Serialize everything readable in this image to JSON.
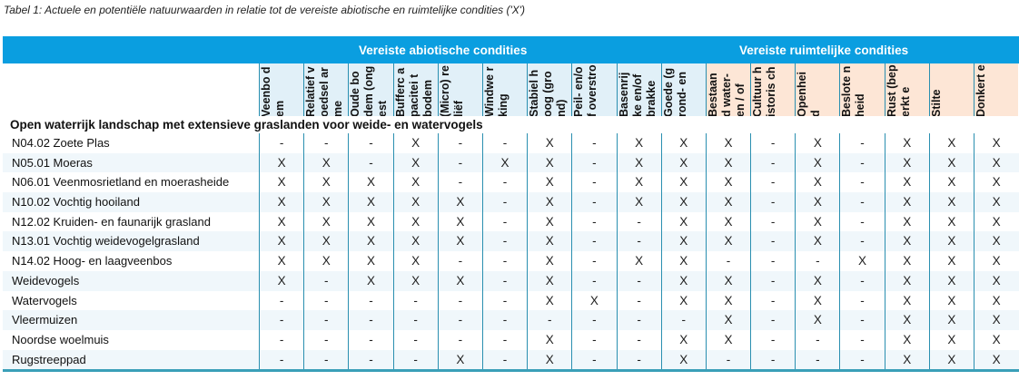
{
  "caption": "Tabel 1: Actuele en potentiële natuurwaarden in relatie tot de vereiste abiotische en ruimtelijke condities ('X')",
  "groups": {
    "abiotic": "Vereiste abiotische condities",
    "spatial": "Vereiste ruimtelijke condities"
  },
  "colors": {
    "banner": "#0a9ee0",
    "abiotic_header": "#e1f0f8",
    "spatial_header": "#fde6d6",
    "grid_line": "#2a8fb0"
  },
  "columns": [
    {
      "label": "Veenbo dem",
      "group": "abiotic"
    },
    {
      "label": "Relatief voedsel arme",
      "group": "abiotic"
    },
    {
      "label": "Oude bodem (ongest",
      "group": "abiotic"
    },
    {
      "label": "Bufferc apacitei t bodem",
      "group": "abiotic"
    },
    {
      "label": "(Micro) reliëf",
      "group": "abiotic"
    },
    {
      "label": "Windwe rking",
      "group": "abiotic"
    },
    {
      "label": "Stabiel hoog (grond)",
      "group": "abiotic"
    },
    {
      "label": "Peil- en/of overstro",
      "group": "abiotic"
    },
    {
      "label": "Basenrij ke en/of brakke",
      "group": "abiotic"
    },
    {
      "label": "Goede (grond- en",
      "group": "abiotic"
    },
    {
      "label": "Bestaan d water- en / of",
      "group": "spatial"
    },
    {
      "label": "Cultuur historis ch",
      "group": "spatial"
    },
    {
      "label": "Openhei d",
      "group": "spatial"
    },
    {
      "label": "Beslote nheid",
      "group": "spatial"
    },
    {
      "label": "Rust (beperkt e",
      "group": "spatial"
    },
    {
      "label": "Stilte",
      "group": "spatial"
    },
    {
      "label": "Donkert e",
      "group": "spatial"
    }
  ],
  "section_title": "Open waterrijk landschap met extensieve graslanden voor weide- en watervogels",
  "rows": [
    {
      "name": "N04.02 Zoete Plas",
      "values": [
        "-",
        "-",
        "-",
        "X",
        "-",
        "-",
        "X",
        "-",
        "X",
        "X",
        "X",
        "-",
        "X",
        "-",
        "X",
        "X",
        "X"
      ]
    },
    {
      "name": "N05.01 Moeras",
      "values": [
        "X",
        "X",
        "-",
        "X",
        "-",
        "X",
        "X",
        "-",
        "X",
        "X",
        "X",
        "-",
        "X",
        "-",
        "X",
        "X",
        "X"
      ]
    },
    {
      "name": "N06.01 Veenmosrietland en moerasheide",
      "values": [
        "X",
        "X",
        "X",
        "X",
        "-",
        "-",
        "X",
        "-",
        "X",
        "X",
        "X",
        "-",
        "X",
        "-",
        "X",
        "X",
        "X"
      ]
    },
    {
      "name": "N10.02 Vochtig hooiland",
      "values": [
        "X",
        "X",
        "X",
        "X",
        "X",
        "-",
        "X",
        "-",
        "X",
        "X",
        "X",
        "-",
        "X",
        "-",
        "X",
        "X",
        "X"
      ]
    },
    {
      "name": "N12.02 Kruiden- en faunarijk grasland",
      "values": [
        "X",
        "X",
        "X",
        "X",
        "X",
        "-",
        "X",
        "-",
        "-",
        "X",
        "X",
        "-",
        "X",
        "-",
        "X",
        "X",
        "X"
      ]
    },
    {
      "name": "N13.01 Vochtig weidevogelgrasland",
      "values": [
        "X",
        "X",
        "X",
        "X",
        "X",
        "-",
        "X",
        "-",
        "-",
        "X",
        "X",
        "-",
        "X",
        "-",
        "X",
        "X",
        "X"
      ]
    },
    {
      "name": "N14.02 Hoog- en laagveenbos",
      "values": [
        "X",
        "X",
        "X",
        "X",
        "-",
        "-",
        "X",
        "-",
        "X",
        "X",
        "-",
        "-",
        "-",
        "X",
        "X",
        "X",
        "X"
      ]
    },
    {
      "name": "Weidevogels",
      "values": [
        "X",
        "-",
        "X",
        "X",
        "X",
        "-",
        "X",
        "-",
        "-",
        "X",
        "X",
        "-",
        "X",
        "-",
        "X",
        "X",
        "X"
      ]
    },
    {
      "name": "Watervogels",
      "values": [
        "-",
        "-",
        "-",
        "-",
        "-",
        "-",
        "X",
        "X",
        "-",
        "X",
        "X",
        "-",
        "X",
        "-",
        "X",
        "X",
        "X"
      ]
    },
    {
      "name": "Vleermuizen",
      "values": [
        "-",
        "-",
        "-",
        "-",
        "-",
        "-",
        "-",
        "-",
        "-",
        "-",
        "X",
        "-",
        "X",
        "-",
        "X",
        "X",
        "X"
      ]
    },
    {
      "name": "Noordse woelmuis",
      "values": [
        "-",
        "-",
        "-",
        "-",
        "-",
        "-",
        "X",
        "-",
        "-",
        "X",
        "X",
        "-",
        "-",
        "-",
        "X",
        "X",
        "X"
      ]
    },
    {
      "name": "Rugstreeppad",
      "values": [
        "-",
        "-",
        "-",
        "-",
        "X",
        "-",
        "X",
        "-",
        "-",
        "X",
        "-",
        "-",
        "-",
        "-",
        "X",
        "X",
        "X"
      ]
    }
  ]
}
